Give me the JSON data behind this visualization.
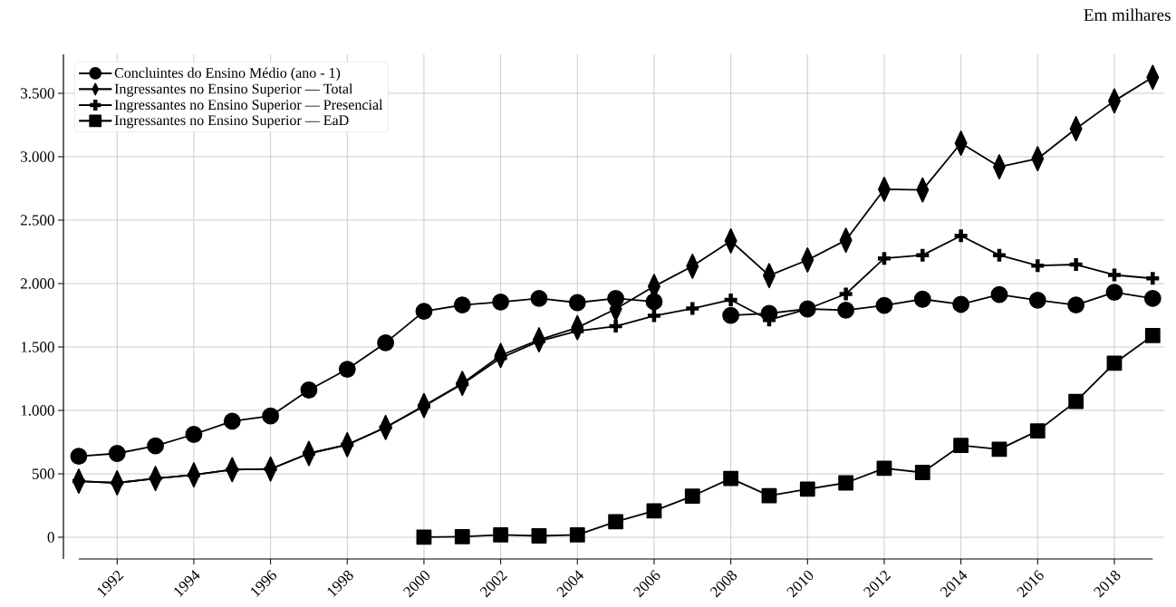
{
  "chart_data": {
    "type": "line",
    "annotations": [
      "Em milhares"
    ],
    "x": [
      1991,
      1992,
      1993,
      1994,
      1995,
      1996,
      1997,
      1998,
      1999,
      2000,
      2001,
      2002,
      2003,
      2004,
      2005,
      2006,
      2007,
      2008,
      2009,
      2010,
      2011,
      2012,
      2013,
      2014,
      2015,
      2016,
      2017,
      2018,
      2019
    ],
    "xlim": [
      1990.6,
      2019.3
    ],
    "xticks": [
      1992,
      1994,
      1996,
      1998,
      2000,
      2002,
      2004,
      2006,
      2008,
      2010,
      2012,
      2014,
      2016,
      2018
    ],
    "ylim": [
      -171,
      3807
    ],
    "yticks": [
      0,
      500,
      {
        "value": 1000,
        "label": "1.000"
      },
      {
        "value": 1500,
        "label": "1.500"
      },
      {
        "value": 2000,
        "label": "2.000"
      },
      {
        "value": 2500,
        "label": "2.500"
      },
      {
        "value": 3000,
        "label": "3.000"
      },
      {
        "value": 3500,
        "label": "3.500"
      }
    ],
    "grid": true,
    "legend": "top left",
    "line_style": "solid",
    "series": [
      {
        "name": "Concluintes do Ensino Médio (ano - 1)",
        "color": "#000000",
        "marker": "circle",
        "values": [
          639,
          661,
          721,
          811,
          915,
          956,
          1161,
          1325,
          1533,
          1781,
          1831,
          1855,
          1883,
          1850,
          1883,
          1858,
          null,
          1749,
          1765,
          1800,
          1790,
          1828,
          1877,
          1836,
          1913,
          1869,
          1831,
          1932,
          1883
        ]
      },
      {
        "name": "Ingressantes no Ensino Superior — Total",
        "color": "#000000",
        "marker": "diamond",
        "values": [
          443,
          429,
          464,
          492,
          533,
          538,
          661,
          730,
          866,
          1038,
          1213,
          1434,
          1557,
          1653,
          1800,
          1978,
          2137,
          2336,
          2063,
          2186,
          2342,
          2743,
          2738,
          3107,
          2921,
          2984,
          3221,
          3440,
          3626
        ]
      },
      {
        "name": "Ingressantes no Ensino Superior — Presencial",
        "color": "#000000",
        "marker": "cross",
        "values": [
          443,
          429,
          464,
          492,
          533,
          538,
          661,
          730,
          866,
          1032,
          1208,
          1413,
          1546,
          1626,
          1664,
          1746,
          1803,
          1872,
          1713,
          1800,
          1918,
          2199,
          2224,
          2377,
          2224,
          2142,
          2150,
          2068,
          2041
        ]
      },
      {
        "name": "Ingressantes no Ensino Superior — EaD",
        "color": "#000000",
        "marker": "square",
        "values": [
          null,
          null,
          null,
          null,
          null,
          null,
          null,
          null,
          null,
          2,
          5,
          19,
          11,
          19,
          123,
          208,
          325,
          464,
          328,
          380,
          429,
          544,
          511,
          724,
          694,
          839,
          1071,
          1372,
          1590
        ]
      }
    ]
  }
}
